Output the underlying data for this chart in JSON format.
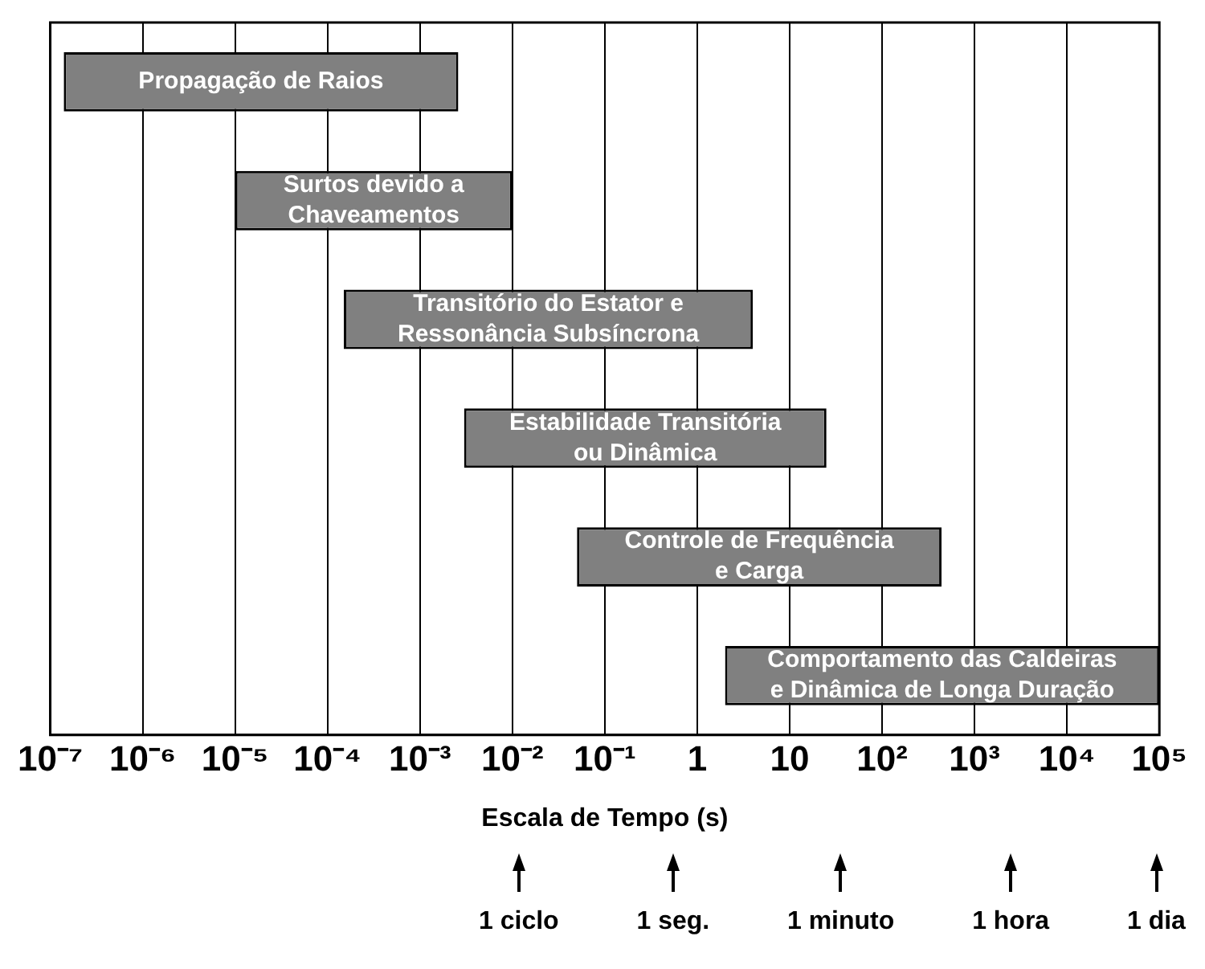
{
  "chart_data": {
    "type": "bar",
    "orientation": "horizontal",
    "log": "x",
    "grid": "x",
    "legend": false,
    "xlabel": "Escala de Tempo (s)",
    "categories": [
      "Propagação de Raios",
      "Surtos devido a\nChaveamentos",
      "Transitório do Estator e\nRessonância Subsíncrona",
      "Estabilidade Transitória\nou Dinâmica",
      "Controle de Frequência\ne Carga",
      "Comportamento das Caldeiras\ne Dinâmica de Longa Duração"
    ],
    "base": [
      1.4e-07,
      1e-05,
      0.00015,
      0.003,
      0.05,
      2
    ],
    "values": [
      0.0026,
      0.01,
      4,
      25,
      440,
      99998
    ],
    "color": "#808080",
    "xlim": [
      1e-07,
      100000
    ],
    "xticks": [
      {
        "value": 1e-07,
        "label": "10⁻⁷"
      },
      {
        "value": 1e-06,
        "label": "10⁻⁶"
      },
      {
        "value": 1e-05,
        "label": "10⁻⁵"
      },
      {
        "value": 0.0001,
        "label": "10⁻⁴"
      },
      {
        "value": 0.001,
        "label": "10⁻³"
      },
      {
        "value": 0.01,
        "label": "10⁻²"
      },
      {
        "value": 0.1,
        "label": "10⁻¹"
      },
      1,
      10,
      {
        "value": 100,
        "label": "10²"
      },
      {
        "value": 1000,
        "label": "10³"
      },
      {
        "value": 10000,
        "label": "10⁴"
      },
      {
        "value": 100000,
        "label": "10⁵"
      }
    ],
    "annotations": [
      "1 ciclo",
      "1 seg.",
      "1 minuto",
      "1 hora",
      "1 dia"
    ]
  }
}
